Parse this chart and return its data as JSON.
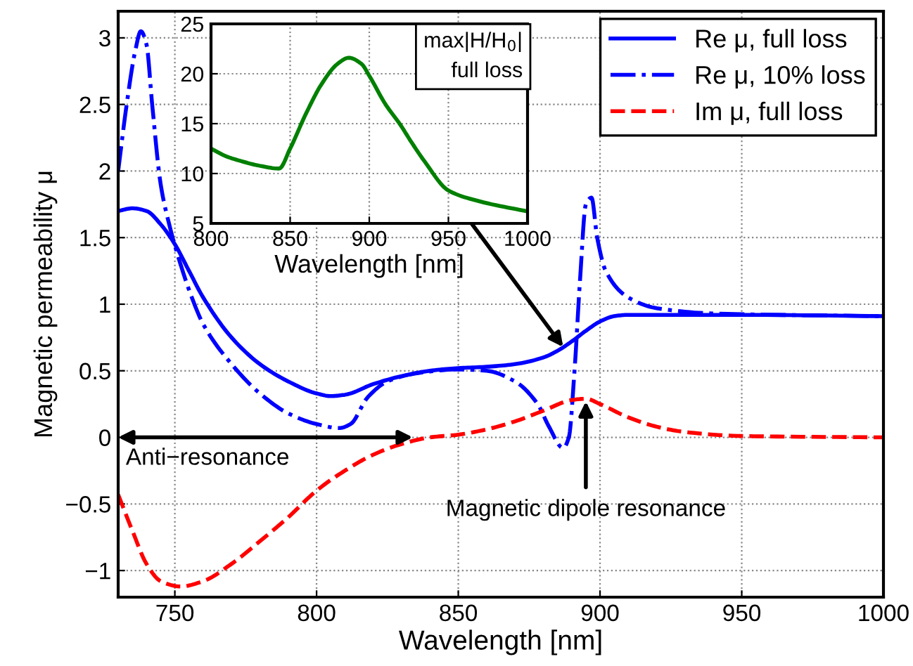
{
  "chart_data": [
    {
      "type": "line",
      "xlabel": "Wavelength [nm]",
      "ylabel": "Magnetic permeability μ",
      "xlim": [
        730,
        1000
      ],
      "xticks": [
        750,
        800,
        850,
        900,
        950,
        1000
      ],
      "ylim": [
        -1.2,
        3.2
      ],
      "yticks": [
        {
          "value": -1,
          "label": "−1"
        },
        {
          "value": -0.5,
          "label": "−0.5"
        },
        0,
        0.5,
        1,
        1.5,
        2,
        2.5,
        3
      ],
      "grid": true,
      "legend": "top right",
      "series": [
        {
          "name": "Re μ, full loss",
          "color": "#0000ff",
          "line_style": "solid",
          "x": [
            730,
            735,
            740,
            745,
            750,
            755,
            760,
            770,
            780,
            790,
            800,
            805,
            810,
            820,
            830,
            840,
            850,
            860,
            870,
            880,
            885,
            890,
            895,
            900,
            905,
            910,
            920,
            950,
            1000
          ],
          "values": [
            1.7,
            1.72,
            1.7,
            1.6,
            1.45,
            1.25,
            1.05,
            0.75,
            0.55,
            0.42,
            0.33,
            0.31,
            0.32,
            0.4,
            0.46,
            0.5,
            0.52,
            0.53,
            0.55,
            0.6,
            0.65,
            0.72,
            0.8,
            0.87,
            0.91,
            0.92,
            0.92,
            0.92,
            0.91
          ]
        },
        {
          "name": "Re μ, 10% loss",
          "color": "#0000ff",
          "line_style": "dashdot",
          "x": [
            730,
            733,
            736,
            738,
            740,
            742,
            745,
            748,
            752,
            756,
            760,
            770,
            780,
            790,
            800,
            808,
            812,
            818,
            825,
            835,
            850,
            860,
            870,
            878,
            882,
            887,
            889,
            891,
            893,
            895,
            897,
            899,
            902,
            910,
            920,
            940,
            1000
          ],
          "values": [
            2.0,
            2.5,
            2.9,
            3.05,
            2.95,
            2.5,
            1.9,
            1.6,
            1.3,
            1.05,
            0.85,
            0.55,
            0.33,
            0.18,
            0.1,
            0.07,
            0.1,
            0.3,
            0.42,
            0.48,
            0.51,
            0.5,
            0.42,
            0.25,
            0.08,
            -0.08,
            0.0,
            0.5,
            1.2,
            1.75,
            1.8,
            1.5,
            1.25,
            1.05,
            0.97,
            0.93,
            0.91
          ]
        },
        {
          "name": "Im μ, full loss",
          "color": "#ff0000",
          "line_style": "dashed",
          "x": [
            730,
            735,
            740,
            745,
            752,
            760,
            770,
            780,
            790,
            800,
            810,
            820,
            830,
            840,
            850,
            860,
            870,
            880,
            890,
            895,
            900,
            910,
            920,
            930,
            950,
            1000
          ],
          "values": [
            -0.43,
            -0.7,
            -0.95,
            -1.08,
            -1.12,
            -1.08,
            -0.95,
            -0.78,
            -0.6,
            -0.4,
            -0.25,
            -0.13,
            -0.05,
            0.0,
            0.02,
            0.06,
            0.12,
            0.2,
            0.28,
            0.29,
            0.25,
            0.15,
            0.08,
            0.04,
            0.01,
            0.0
          ]
        }
      ],
      "annotations": [
        "Anti−resonance",
        {
          "text": "Magnetic dipole resonance",
          "x": 895,
          "y": 0.25
        }
      ]
    },
    {
      "type": "line",
      "xlabel": "Wavelength [nm]",
      "xlim": [
        800,
        1000
      ],
      "xticks": [
        800,
        850,
        900,
        950,
        1000
      ],
      "ylim": [
        5,
        25
      ],
      "yticks": [
        5,
        10,
        15,
        20,
        25
      ],
      "grid": true,
      "series": [
        {
          "color": "#008000",
          "line_style": "solid",
          "x": [
            800,
            810,
            820,
            830,
            843,
            850,
            860,
            870,
            880,
            887,
            895,
            900,
            910,
            920,
            926,
            935,
            950,
            970,
            1000
          ],
          "values": [
            12.5,
            11.7,
            11.2,
            10.8,
            10.5,
            12.5,
            16,
            19,
            21,
            21.6,
            21,
            19.8,
            17,
            14.8,
            13.3,
            11.2,
            8.3,
            7.2,
            6.2
          ]
        }
      ],
      "annotations": [
        "max|H/H$_{0}$|\nfull loss"
      ]
    }
  ]
}
